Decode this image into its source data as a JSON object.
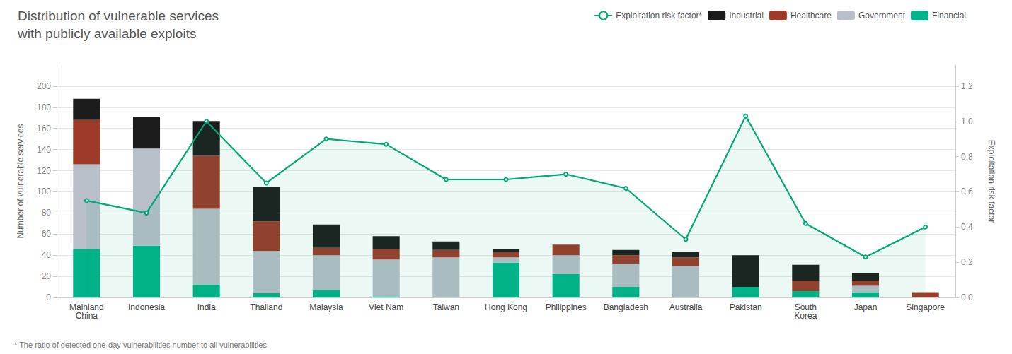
{
  "chart_data": {
    "type": "bar",
    "title": "Distribution of vulnerable services",
    "subtitle": "with publicly available exploits",
    "annotations": [
      "* The ratio of detected one-day vulnerabilities number to all vulnerabilities"
    ],
    "ylabel": "Number of vulnerable services",
    "y2label": "Exploitation risk factor",
    "categories": [
      "Mainland\nChina",
      "Indonesia",
      "India",
      "Thailand",
      "Malaysia",
      "Viet Nam",
      "Taiwan",
      "Hong Kong",
      "Philippines",
      "Bangladesh",
      "Australia",
      "Pakistan",
      "South\nKorea",
      "Japan",
      "Singapore"
    ],
    "stacked": true,
    "grid": true,
    "legend": "top right",
    "series": [
      {
        "name": "Financial",
        "type": "bar",
        "color": "#00b388",
        "values": [
          46,
          49,
          12,
          4,
          7,
          1,
          0,
          33,
          22,
          10,
          0,
          10,
          6,
          5,
          0
        ]
      },
      {
        "name": "Government",
        "type": "bar",
        "color": "#b8bfc8",
        "values": [
          80,
          92,
          72,
          40,
          33,
          35,
          38,
          5,
          18,
          22,
          30,
          0,
          0,
          6,
          0
        ]
      },
      {
        "name": "Healthcare",
        "type": "bar",
        "color": "#9e3a2a",
        "values": [
          42,
          0,
          50,
          28,
          7,
          10,
          7,
          5,
          10,
          8,
          8,
          0,
          10,
          5,
          5
        ]
      },
      {
        "name": "Industrial",
        "type": "bar",
        "color": "#1c1c1c",
        "values": [
          20,
          30,
          33,
          33,
          22,
          12,
          8,
          3,
          0,
          5,
          5,
          30,
          15,
          7,
          0
        ]
      },
      {
        "name": "Exploitation risk factor*",
        "type": "area",
        "axis": "y2",
        "color": "#00a878",
        "values": [
          0.55,
          0.48,
          1.0,
          0.65,
          0.9,
          0.87,
          0.67,
          0.67,
          0.7,
          0.62,
          0.33,
          1.03,
          0.42,
          0.23,
          0.4
        ]
      }
    ],
    "ylim": [
      0,
      220
    ],
    "yticks": [
      0,
      20,
      40,
      60,
      80,
      100,
      120,
      140,
      160,
      180,
      200
    ],
    "y2lim": [
      0,
      1.32
    ],
    "y2ticks": [
      {
        "value": 0,
        "label": "0.0"
      },
      0.2,
      0.4,
      0.6,
      0.8,
      {
        "value": 1.0,
        "label": "1.0"
      },
      1.2
    ]
  }
}
